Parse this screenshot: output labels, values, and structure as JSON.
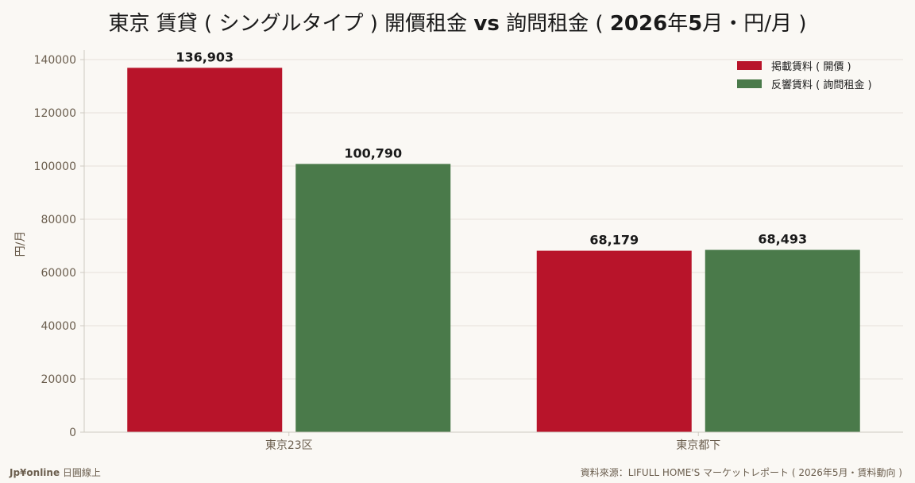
{
  "colors": {
    "background": "#faf8f4",
    "listed": "#b8142a",
    "inquiry": "#4a7a4a",
    "grid": "#e5e1da",
    "axis": "#cfcac2",
    "muted_text": "#6b5e4e"
  },
  "title": {
    "prefix": "東京 賃貸 ( シングルタイプ ) 開價租金 ",
    "vs": "vs",
    "middle": " 詢問租金 ( ",
    "date_bold": "2026",
    "date_rest": "年",
    "month_bold": "5",
    "suffix": "月・円/月 )"
  },
  "footer": {
    "brand_bold": "Jp¥online",
    "brand_rest": " 日圓線上",
    "source": "資料來源：LIFULL HOME'S マーケットレポート ( 2026年5月・賃料動向 )"
  },
  "chart_data": {
    "type": "bar",
    "categories": [
      "東京23区",
      "東京都下"
    ],
    "series": [
      {
        "name": "掲載賃料 ( 開價 )",
        "values": [
          136903,
          68179
        ],
        "labels": [
          "136,903",
          "68,179"
        ],
        "color": "#b8142a"
      },
      {
        "name": "反響賃料 ( 詢問租金 )",
        "values": [
          100790,
          68493
        ],
        "labels": [
          "100,790",
          "68,493"
        ],
        "color": "#4a7a4a"
      }
    ],
    "xlabel": "",
    "ylabel": "円/月",
    "ylim": [
      0,
      140000
    ],
    "yticks": [
      0,
      20000,
      40000,
      60000,
      80000,
      100000,
      120000,
      140000
    ],
    "ytick_labels": [
      "0",
      "20000",
      "40000",
      "60000",
      "80000",
      "100000",
      "120000",
      "140000"
    ],
    "grid": true,
    "legend_position": "top-right"
  }
}
